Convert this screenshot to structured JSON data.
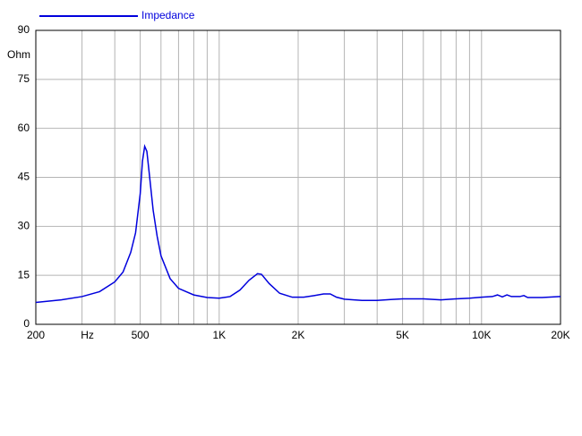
{
  "chart_data": {
    "type": "line",
    "y_label": "Ohm",
    "log_x": true,
    "grid": true,
    "x": [
      200,
      250,
      300,
      350,
      400,
      430,
      460,
      480,
      500,
      510,
      520,
      530,
      540,
      560,
      580,
      600,
      650,
      700,
      800,
      900,
      1000,
      1100,
      1200,
      1300,
      1400,
      1450,
      1550,
      1700,
      1900,
      2100,
      2300,
      2500,
      2650,
      2800,
      3000,
      3500,
      4000,
      4500,
      5000,
      6000,
      7000,
      8000,
      9000,
      10000,
      11000,
      11500,
      12000,
      12500,
      13000,
      14000,
      14500,
      15000,
      17000,
      20000
    ],
    "series": [
      {
        "name": "Impedance",
        "color": "#0000dd",
        "values": [
          6.7,
          7.5,
          8.5,
          10,
          13,
          16,
          22,
          28,
          40,
          50,
          54.5,
          53,
          47,
          35,
          27,
          21,
          14,
          11,
          9,
          8.2,
          8,
          8.5,
          10.5,
          13.5,
          15.5,
          15.3,
          12.5,
          9.5,
          8.3,
          8.3,
          8.8,
          9.3,
          9.3,
          8.3,
          7.7,
          7.3,
          7.3,
          7.6,
          7.8,
          7.8,
          7.5,
          7.8,
          8.0,
          8.3,
          8.5,
          9,
          8.4,
          9,
          8.5,
          8.5,
          8.8,
          8.2,
          8.2,
          8.5
        ]
      }
    ],
    "xlim": [
      200,
      20000
    ],
    "xticks": [
      200,
      {
        "value": 300,
        "label": "Hz"
      },
      500,
      {
        "value": 1000,
        "label": "1K"
      },
      {
        "value": 2000,
        "label": "2K"
      },
      {
        "value": 5000,
        "label": "5K"
      },
      {
        "value": 10000,
        "label": "10K"
      },
      {
        "value": 20000,
        "label": "20K"
      }
    ],
    "xgrid": [
      400,
      600,
      700,
      800,
      900,
      3000,
      4000,
      6000,
      7000,
      8000,
      9000
    ],
    "ylim": [
      0,
      90
    ],
    "yticks": [
      0,
      15,
      30,
      45,
      60,
      75,
      90
    ]
  }
}
